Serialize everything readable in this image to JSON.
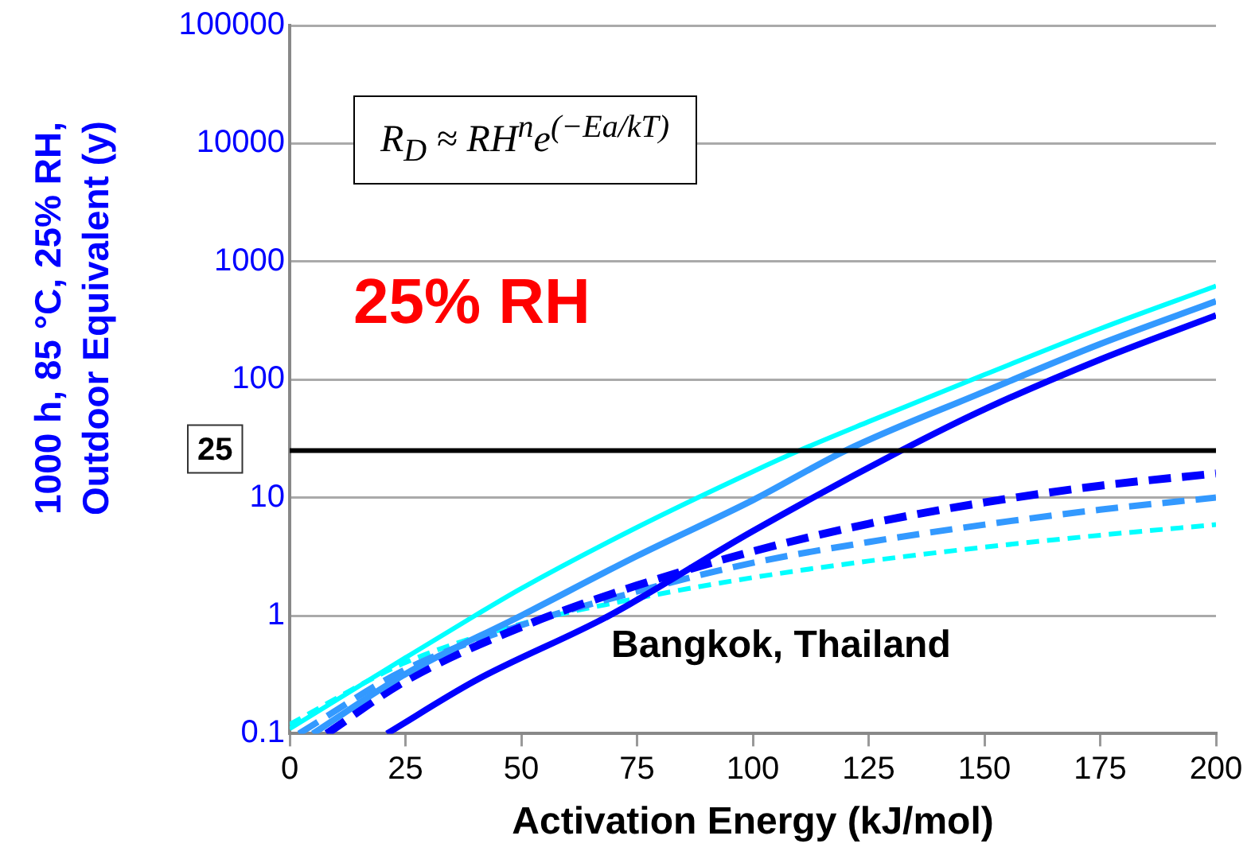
{
  "chart_data": {
    "type": "line",
    "xlabel": "Activation Energy (kJ/mol)",
    "ylabel": "1000 h, 85 °C, 25% RH, Outdoor Equivalent  (y)",
    "xlim": [
      0,
      200
    ],
    "xticks": [
      0,
      25,
      50,
      75,
      100,
      125,
      150,
      175,
      200
    ],
    "ylim": [
      0.1,
      100000
    ],
    "yticks": [
      0.1,
      1,
      10,
      100,
      1000,
      10000,
      100000
    ],
    "log": "y",
    "grid": "y",
    "legend": false,
    "marker": "none",
    "series": [
      {
        "color": "#00ffff",
        "line_style": "solid",
        "x": [
          0,
          25,
          40,
          50,
          75,
          100,
          110,
          125,
          150,
          175,
          200
        ],
        "values": [
          0.11,
          0.44,
          1,
          1.7,
          5.6,
          16.6,
          25,
          44,
          110,
          270,
          620
        ]
      },
      {
        "color": "#3399ff",
        "line_style": "solid",
        "x": [
          5,
          25,
          50,
          75,
          100,
          120,
          150,
          175,
          200
        ],
        "values": [
          0.1,
          0.32,
          1,
          3.2,
          9.5,
          25,
          79,
          200,
          460
        ]
      },
      {
        "color": "#0000ff",
        "line_style": "solid",
        "x": [
          21,
          40,
          69,
          100,
          132,
          150,
          175,
          200
        ],
        "values": [
          0.1,
          0.28,
          1,
          5.2,
          25,
          56,
          148,
          350
        ]
      },
      {
        "color": "#0000ff",
        "line_style": "dashed",
        "x": [
          8,
          25,
          50,
          75,
          100,
          125,
          150,
          175,
          200
        ],
        "values": [
          0.1,
          0.28,
          0.8,
          1.8,
          3.5,
          6,
          9.1,
          12.6,
          16
        ]
      },
      {
        "color": "#3399ff",
        "line_style": "dashed",
        "x": [
          2,
          25,
          50,
          75,
          100,
          125,
          150,
          175,
          200
        ],
        "values": [
          0.1,
          0.35,
          0.83,
          1.6,
          2.8,
          4.2,
          5.9,
          7.9,
          10
        ]
      },
      {
        "color": "#00ffff",
        "line_style": "dotted",
        "x": [
          0,
          25,
          50,
          75,
          100,
          125,
          150,
          175,
          200
        ],
        "values": [
          0.12,
          0.4,
          0.85,
          1.4,
          2.1,
          2.9,
          3.8,
          4.8,
          5.9
        ]
      }
    ],
    "ref_lines": [
      {
        "axis": "y",
        "value": 25,
        "label": "25",
        "color": "#000000"
      }
    ],
    "annotations": [
      "R$_{D}$ ≈ RH$^{n}$e$^{(−Ea/kT)}$",
      "25% RH",
      "Bangkok, Thailand"
    ]
  }
}
